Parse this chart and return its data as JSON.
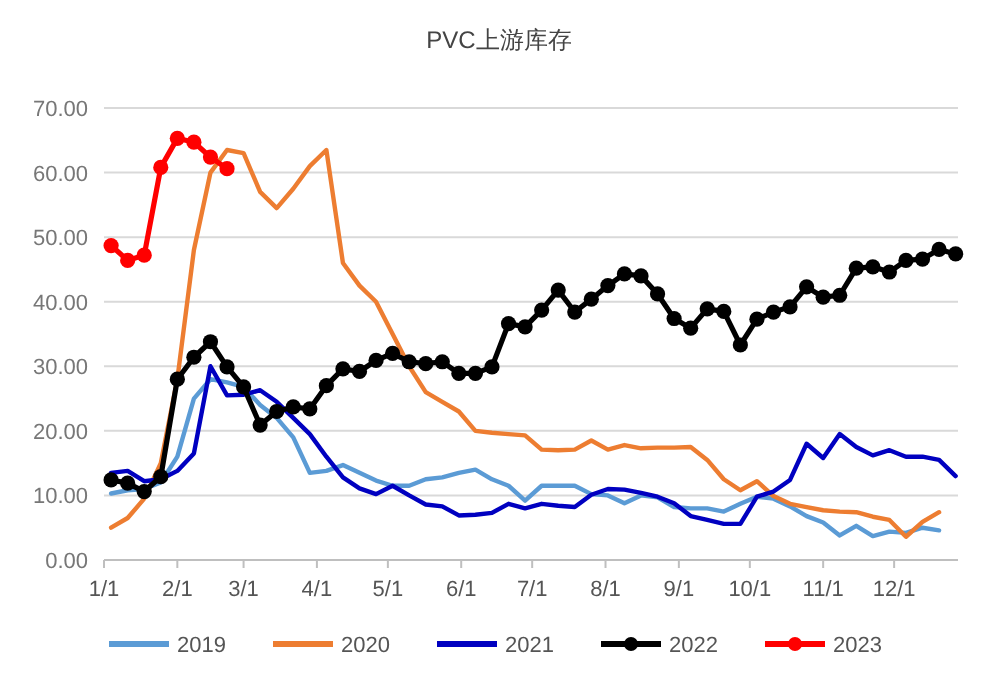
{
  "chart_data": {
    "type": "line",
    "title": "PVC上游库存",
    "x": [
      "--01-04",
      "--01-11",
      "--01-18",
      "--01-25",
      "--02-01",
      "--02-08",
      "--02-15",
      "--02-22",
      "--03-01",
      "--03-08",
      "--03-15",
      "--03-22",
      "--03-29",
      "--04-05",
      "--04-12",
      "--04-19",
      "--04-26",
      "--05-03",
      "--05-10",
      "--05-17",
      "--05-24",
      "--05-31",
      "--06-07",
      "--06-14",
      "--06-21",
      "--06-28",
      "--07-05",
      "--07-12",
      "--07-19",
      "--07-26",
      "--08-02",
      "--08-09",
      "--08-16",
      "--08-23",
      "--08-30",
      "--09-06",
      "--09-13",
      "--09-20",
      "--09-27",
      "--10-04",
      "--10-11",
      "--10-18",
      "--10-25",
      "--11-01",
      "--11-08",
      "--11-15",
      "--11-22",
      "--11-29",
      "--12-06",
      "--12-13",
      "--12-20",
      "--12-27"
    ],
    "series": [
      {
        "name": "2019",
        "color": "#5b9bd5",
        "marker": "none",
        "values": [
          10.3,
          10.8,
          11,
          12,
          16,
          25,
          28,
          27.5,
          26.8,
          24,
          22,
          19,
          13.5,
          13.8,
          14.7,
          13.5,
          12.3,
          11.5,
          11.5,
          12.5,
          12.8,
          13.5,
          14,
          12.5,
          11.5,
          9.2,
          11.5,
          11.5,
          11.5,
          10.2,
          10,
          8.8,
          10,
          9.7,
          8.2,
          8,
          8,
          7.5,
          8.7,
          9.8,
          9.5,
          8.3,
          6.8,
          5.8,
          3.8,
          5.3,
          3.7,
          4.4,
          4.2,
          5,
          4.6,
          null
        ]
      },
      {
        "name": "2020",
        "color": "#ed7d31",
        "marker": "none",
        "values": [
          5.0,
          6.5,
          9.5,
          15,
          28,
          48,
          60,
          63.5,
          63,
          57,
          54.5,
          57.5,
          61,
          63.5,
          46,
          42.5,
          40,
          35,
          30,
          26,
          24.5,
          23,
          20,
          19.7,
          19.5,
          19.3,
          17.1,
          17,
          17.1,
          18.5,
          17.1,
          17.8,
          17.3,
          17.4,
          17.4,
          17.5,
          15.5,
          12.5,
          10.8,
          12.2,
          9.9,
          8.7,
          8.2,
          7.7,
          7.5,
          7.4,
          6.7,
          6.2,
          3.6,
          5.9,
          7.4,
          null
        ]
      },
      {
        "name": "2021",
        "color": "#0000c0",
        "marker": "none",
        "values": [
          13.5,
          13.8,
          12.2,
          12.5,
          13.8,
          16.5,
          30,
          25.5,
          25.6,
          26.3,
          24.5,
          22,
          19.5,
          16,
          12.8,
          11.1,
          10.2,
          11.5,
          10,
          8.6,
          8.3,
          6.9,
          7,
          7.3,
          8.7,
          8.0,
          8.7,
          8.4,
          8.2,
          10.1,
          11,
          10.9,
          10.4,
          9.8,
          8.8,
          6.8,
          6.2,
          5.6,
          5.6,
          9.8,
          10.6,
          12.4,
          18,
          15.8,
          19.5,
          17.5,
          16.2,
          17,
          16,
          16,
          15.5,
          13
        ]
      },
      {
        "name": "2022",
        "color": "#000000",
        "marker": "circle",
        "values": [
          12.4,
          11.9,
          10.6,
          12.9,
          28,
          31.4,
          33.8,
          29.9,
          26.8,
          20.9,
          23,
          23.7,
          23.4,
          27,
          29.6,
          29.2,
          30.9,
          32,
          30.7,
          30.4,
          30.7,
          28.9,
          28.9,
          29.9,
          36.6,
          36.1,
          38.7,
          41.8,
          38.4,
          40.4,
          42.5,
          44.3,
          44,
          41.2,
          37.4,
          35.9,
          38.9,
          38.5,
          33.3,
          37.3,
          38.4,
          39.2,
          42.3,
          40.7,
          41,
          45.2,
          45.4,
          44.6,
          46.4,
          46.6,
          48.1,
          47.4
        ]
      },
      {
        "name": "2023",
        "color": "#ff0000",
        "marker": "circle",
        "x": [
          "--01-04",
          "--01-11",
          "--01-18",
          "--01-25",
          "--02-01",
          "--02-08",
          "--02-15",
          "--02-22"
        ],
        "values": [
          48.7,
          46.4,
          47.2,
          60.8,
          65.3,
          64.7,
          62.4,
          60.6
        ]
      }
    ],
    "xlim": [
      "--01-01",
      "--12-28"
    ],
    "xticks": [
      {
        "value": "--01-01",
        "label": "1/1"
      },
      {
        "value": "--02-01",
        "label": "2/1"
      },
      {
        "value": "--03-01",
        "label": "3/1"
      },
      {
        "value": "--04-01",
        "label": "4/1"
      },
      {
        "value": "--05-01",
        "label": "5/1"
      },
      {
        "value": "--06-01",
        "label": "6/1"
      },
      {
        "value": "--07-01",
        "label": "7/1"
      },
      {
        "value": "--08-01",
        "label": "8/1"
      },
      {
        "value": "--09-01",
        "label": "9/1"
      },
      {
        "value": "--10-01",
        "label": "10/1"
      },
      {
        "value": "--11-01",
        "label": "11/1"
      },
      {
        "value": "--12-01",
        "label": "12/1"
      }
    ],
    "ylim": [
      0,
      70
    ],
    "yticks": [
      {
        "value": 0,
        "label": "0.00"
      },
      {
        "value": 10,
        "label": "10.00"
      },
      {
        "value": 20,
        "label": "20.00"
      },
      {
        "value": 30,
        "label": "30.00"
      },
      {
        "value": 40,
        "label": "40.00"
      },
      {
        "value": 50,
        "label": "50.00"
      },
      {
        "value": 60,
        "label": "60.00"
      },
      {
        "value": 70,
        "label": "70.00"
      }
    ],
    "grid": "y",
    "legend": "bottom"
  }
}
